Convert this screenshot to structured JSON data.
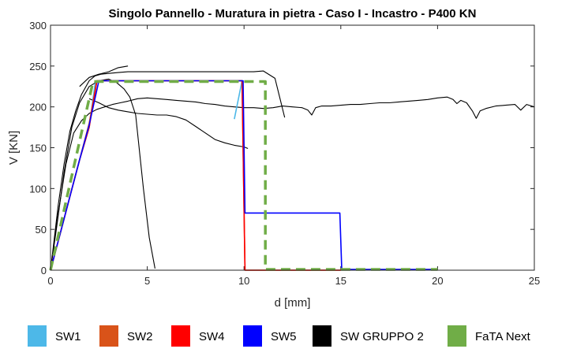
{
  "chart_data": {
    "type": "line",
    "title": "Singolo Pannello - Muratura in pietra - Caso I - Incastro - P400 KN",
    "xlabel": "d [mm]",
    "ylabel": "V [KN]",
    "xlim": [
      0,
      25
    ],
    "ylim": [
      0,
      300
    ],
    "xticks": [
      0,
      5,
      10,
      15,
      20,
      25
    ],
    "yticks": [
      0,
      50,
      100,
      150,
      200,
      250,
      300
    ],
    "grid": false,
    "legend_position": "bottom",
    "series": [
      {
        "name": "SW1",
        "color": "#4db8e8",
        "dashed": false,
        "curves": [
          [
            [
              0,
              0
            ],
            [
              0.5,
              45
            ],
            [
              1,
              90
            ],
            [
              1.5,
              135
            ],
            [
              2,
              175
            ],
            [
              2.3,
              228
            ],
            [
              2.6,
              232
            ],
            [
              9.9,
              232
            ],
            [
              9.5,
              185
            ]
          ]
        ]
      },
      {
        "name": "SW2",
        "color": "#d95319",
        "dashed": false,
        "curves": [
          [
            [
              0,
              0
            ],
            [
              0.5,
              45
            ],
            [
              1,
              90
            ],
            [
              1.5,
              135
            ],
            [
              2,
              180
            ],
            [
              2.4,
              232
            ],
            [
              9.9,
              232
            ],
            [
              10.05,
              0
            ],
            [
              15,
              0
            ]
          ]
        ]
      },
      {
        "name": "SW4",
        "color": "#ff0000",
        "dashed": false,
        "curves": [
          [
            [
              0,
              0
            ],
            [
              0.5,
              45
            ],
            [
              1,
              90
            ],
            [
              1.5,
              135
            ],
            [
              2,
              175
            ],
            [
              2.4,
              232
            ],
            [
              9.9,
              232
            ],
            [
              10.05,
              0
            ],
            [
              15,
              0
            ]
          ]
        ]
      },
      {
        "name": "SW5",
        "color": "#0000ff",
        "dashed": false,
        "curves": [
          [
            [
              0,
              0
            ],
            [
              0.5,
              45
            ],
            [
              1,
              90
            ],
            [
              1.5,
              135
            ],
            [
              2,
              178
            ],
            [
              2.5,
              232
            ],
            [
              9.95,
              232
            ],
            [
              10.05,
              70
            ],
            [
              14.95,
              70
            ],
            [
              15.05,
              1
            ],
            [
              20,
              1
            ]
          ]
        ]
      },
      {
        "name": "SW GRUPPO 2",
        "color": "#000000",
        "dashed": false,
        "curves": [
          [
            [
              0,
              0
            ],
            [
              0.15,
              30
            ],
            [
              0.4,
              80
            ],
            [
              0.7,
              130
            ],
            [
              1,
              170
            ],
            [
              1.3,
              195
            ],
            [
              1.6,
              215
            ],
            [
              2,
              232
            ],
            [
              2.3,
              238
            ],
            [
              2.6,
              240
            ],
            [
              3,
              241
            ],
            [
              3.5,
              242
            ],
            [
              4,
              243
            ],
            [
              10.5,
              243
            ],
            [
              11,
              244
            ],
            [
              11.6,
              235
            ],
            [
              12.1,
              187
            ]
          ],
          [
            [
              0,
              0
            ],
            [
              0.3,
              50
            ],
            [
              0.7,
              120
            ],
            [
              1.1,
              175
            ],
            [
              1.5,
              205
            ],
            [
              2,
              225
            ],
            [
              2.5,
              232
            ],
            [
              3,
              234
            ],
            [
              3.4,
              230
            ],
            [
              3.8,
              222
            ],
            [
              4.1,
              212
            ],
            [
              4.4,
              190
            ],
            [
              4.8,
              100
            ],
            [
              5.1,
              40
            ],
            [
              5.4,
              2
            ]
          ],
          [
            [
              0,
              0
            ],
            [
              0.4,
              70
            ],
            [
              0.8,
              130
            ],
            [
              1.2,
              168
            ],
            [
              1.6,
              183
            ],
            [
              2,
              192
            ],
            [
              2.4,
              197
            ],
            [
              2.8,
              200
            ],
            [
              3.2,
              203
            ],
            [
              3.6,
              205
            ],
            [
              4,
              207
            ],
            [
              4.5,
              210
            ],
            [
              5,
              211
            ],
            [
              5.5,
              210
            ],
            [
              6,
              209
            ],
            [
              6.5,
              208
            ],
            [
              7,
              207
            ],
            [
              7.5,
              206
            ],
            [
              8,
              204
            ],
            [
              8.5,
              203
            ],
            [
              9,
              201
            ],
            [
              9.5,
              200
            ],
            [
              10,
              199
            ],
            [
              10.5,
              199
            ],
            [
              11,
              198
            ],
            [
              11.5,
              199
            ],
            [
              12,
              201
            ],
            [
              12.5,
              200
            ],
            [
              13,
              199
            ],
            [
              13.3,
              196
            ],
            [
              13.5,
              190
            ],
            [
              13.7,
              199
            ],
            [
              14,
              201
            ],
            [
              14.5,
              201
            ],
            [
              15,
              202
            ],
            [
              15.5,
              203
            ],
            [
              16,
              203
            ],
            [
              16.5,
              204
            ],
            [
              17,
              205
            ],
            [
              17.5,
              205
            ],
            [
              18,
              206
            ],
            [
              18.5,
              207
            ],
            [
              19,
              208
            ],
            [
              19.5,
              209
            ],
            [
              20,
              211
            ],
            [
              20.5,
              212
            ],
            [
              20.8,
              209
            ],
            [
              21,
              204
            ],
            [
              21.2,
              208
            ],
            [
              21.5,
              205
            ],
            [
              21.8,
              195
            ],
            [
              22,
              186
            ],
            [
              22.2,
              195
            ],
            [
              22.5,
              198
            ],
            [
              23,
              201
            ],
            [
              23.5,
              202
            ],
            [
              24,
              203
            ],
            [
              24.3,
              196
            ],
            [
              24.6,
              203
            ],
            [
              25,
              200
            ]
          ],
          [
            [
              2,
              210
            ],
            [
              2.5,
              205
            ],
            [
              3,
              199
            ],
            [
              3.5,
              196
            ],
            [
              4,
              194
            ],
            [
              4.5,
              192
            ],
            [
              5,
              191
            ],
            [
              5.5,
              190
            ],
            [
              6,
              190
            ],
            [
              6.5,
              188
            ],
            [
              7,
              184
            ],
            [
              7.5,
              176
            ],
            [
              8,
              168
            ],
            [
              8.5,
              160
            ],
            [
              9,
              156
            ],
            [
              9.5,
              153
            ],
            [
              10,
              151
            ],
            [
              10.2,
              149
            ]
          ],
          [
            [
              1.5,
              225
            ],
            [
              2,
              236
            ],
            [
              2.5,
              240
            ],
            [
              3,
              243
            ],
            [
              3.5,
              248
            ],
            [
              4,
              250
            ]
          ]
        ]
      },
      {
        "name": "FaTA Next",
        "color": "#70ad47",
        "dashed": true,
        "curves": [
          [
            [
              0,
              0
            ],
            [
              2.2,
              231
            ],
            [
              11.1,
              231
            ],
            [
              11.1,
              1
            ],
            [
              20,
              1
            ]
          ]
        ]
      }
    ]
  }
}
